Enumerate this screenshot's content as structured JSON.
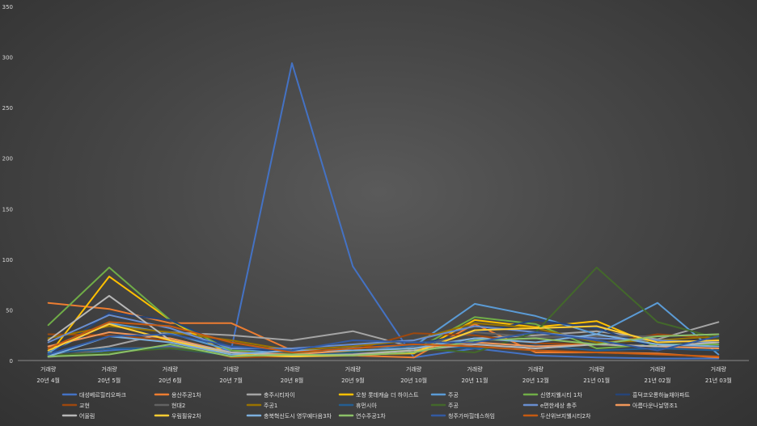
{
  "chart_data": {
    "type": "line",
    "title": "",
    "xlabel": "",
    "ylabel": "",
    "ylim": [
      0,
      350
    ],
    "yticks": [
      0,
      50,
      100,
      150,
      200,
      250,
      300,
      350
    ],
    "grid": false,
    "legend_position": "bottom",
    "x_top_labels": [
      "거래량",
      "거래량",
      "거래량",
      "거래량",
      "거래량",
      "거래량",
      "거래량",
      "거래량",
      "거래량",
      "거래량",
      "거래량",
      "거래량"
    ],
    "categories": [
      "20년 4월",
      "20년 5월",
      "20년 6월",
      "20년 7월",
      "20년 8월",
      "20년 9월",
      "20년 10월",
      "20년 11월",
      "20년 12월",
      "21년 01월",
      "21년 02월",
      "21년 03월"
    ],
    "series": [
      {
        "name": "대성베르힐리오파크",
        "color": "#4472C4",
        "values": [
          4,
          10,
          14,
          10,
          294,
          93,
          3,
          12,
          5,
          3,
          2,
          2
        ]
      },
      {
        "name": "용산주공1차",
        "color": "#ED7D31",
        "values": [
          57,
          51,
          37,
          37,
          10,
          5,
          3,
          36,
          8,
          8,
          7,
          3
        ]
      },
      {
        "name": "충주시티자이",
        "color": "#A5A5A5",
        "values": [
          6,
          14,
          28,
          25,
          20,
          29,
          13,
          22,
          25,
          29,
          21,
          38
        ]
      },
      {
        "name": "오창 롯데캐슬 더 하이스트",
        "color": "#FFC000",
        "values": [
          5,
          83,
          40,
          5,
          4,
          6,
          7,
          40,
          33,
          39,
          14,
          18
        ]
      },
      {
        "name": "주공",
        "color": "#5B9BD5",
        "values": [
          8,
          37,
          27,
          10,
          9,
          13,
          14,
          56,
          44,
          26,
          57,
          6
        ]
      },
      {
        "name": "신영지웰시티 1차",
        "color": "#70AD47",
        "values": [
          35,
          92,
          40,
          10,
          6,
          8,
          10,
          43,
          36,
          12,
          16,
          16
        ]
      },
      {
        "name": "흥덕코오롱하늘채아파트",
        "color": "#264478",
        "values": [
          5,
          47,
          40,
          13,
          8,
          14,
          16,
          27,
          40,
          32,
          12,
          14
        ]
      },
      {
        "name": "교현",
        "color": "#9E480E",
        "values": [
          26,
          25,
          20,
          3,
          4,
          10,
          27,
          25,
          17,
          16,
          26,
          22
        ]
      },
      {
        "name": "현대2",
        "color": "#636363",
        "values": [
          3,
          12,
          13,
          8,
          8,
          7,
          13,
          28,
          23,
          24,
          24,
          26
        ]
      },
      {
        "name": "주공1",
        "color": "#997300",
        "values": [
          22,
          34,
          28,
          20,
          10,
          14,
          20,
          37,
          32,
          18,
          20,
          24
        ]
      },
      {
        "name": "휴먼시아",
        "color": "#255E91",
        "values": [
          7,
          12,
          12,
          5,
          6,
          8,
          15,
          12,
          15,
          10,
          12,
          10
        ]
      },
      {
        "name": "주공",
        "color": "#43682B",
        "values": [
          5,
          8,
          12,
          6,
          7,
          9,
          12,
          8,
          28,
          92,
          38,
          22
        ]
      },
      {
        "name": "e편한세상 충주",
        "color": "#698ED0",
        "values": [
          18,
          45,
          32,
          12,
          12,
          16,
          20,
          34,
          28,
          22,
          20,
          18
        ]
      },
      {
        "name": "아름다운나날명조1",
        "color": "#F1975A",
        "values": [
          14,
          28,
          22,
          8,
          6,
          10,
          12,
          18,
          14,
          16,
          14,
          12
        ]
      },
      {
        "name": "어울림",
        "color": "#B7B7B7",
        "values": [
          20,
          64,
          20,
          8,
          5,
          6,
          10,
          16,
          12,
          16,
          14,
          18
        ]
      },
      {
        "name": "우림필유2차",
        "color": "#FFCD33",
        "values": [
          10,
          36,
          20,
          6,
          4,
          5,
          8,
          30,
          32,
          34,
          18,
          20
        ]
      },
      {
        "name": "충북혁신도시 영무예다음3차",
        "color": "#7CAFDD",
        "values": [
          4,
          24,
          18,
          6,
          10,
          10,
          12,
          22,
          18,
          26,
          16,
          14
        ]
      },
      {
        "name": "연수주공1차",
        "color": "#8CC168",
        "values": [
          4,
          6,
          16,
          4,
          6,
          5,
          8,
          20,
          22,
          16,
          24,
          26
        ]
      },
      {
        "name": "청주가마힐데스하임",
        "color": "#335AA1",
        "values": [
          6,
          24,
          26,
          14,
          10,
          20,
          18,
          18,
          28,
          20,
          10,
          24
        ]
      },
      {
        "name": "두산위브지웰시티2차",
        "color": "#C55A11",
        "values": [
          12,
          38,
          34,
          18,
          8,
          12,
          16,
          14,
          10,
          8,
          6,
          4
        ]
      }
    ]
  }
}
